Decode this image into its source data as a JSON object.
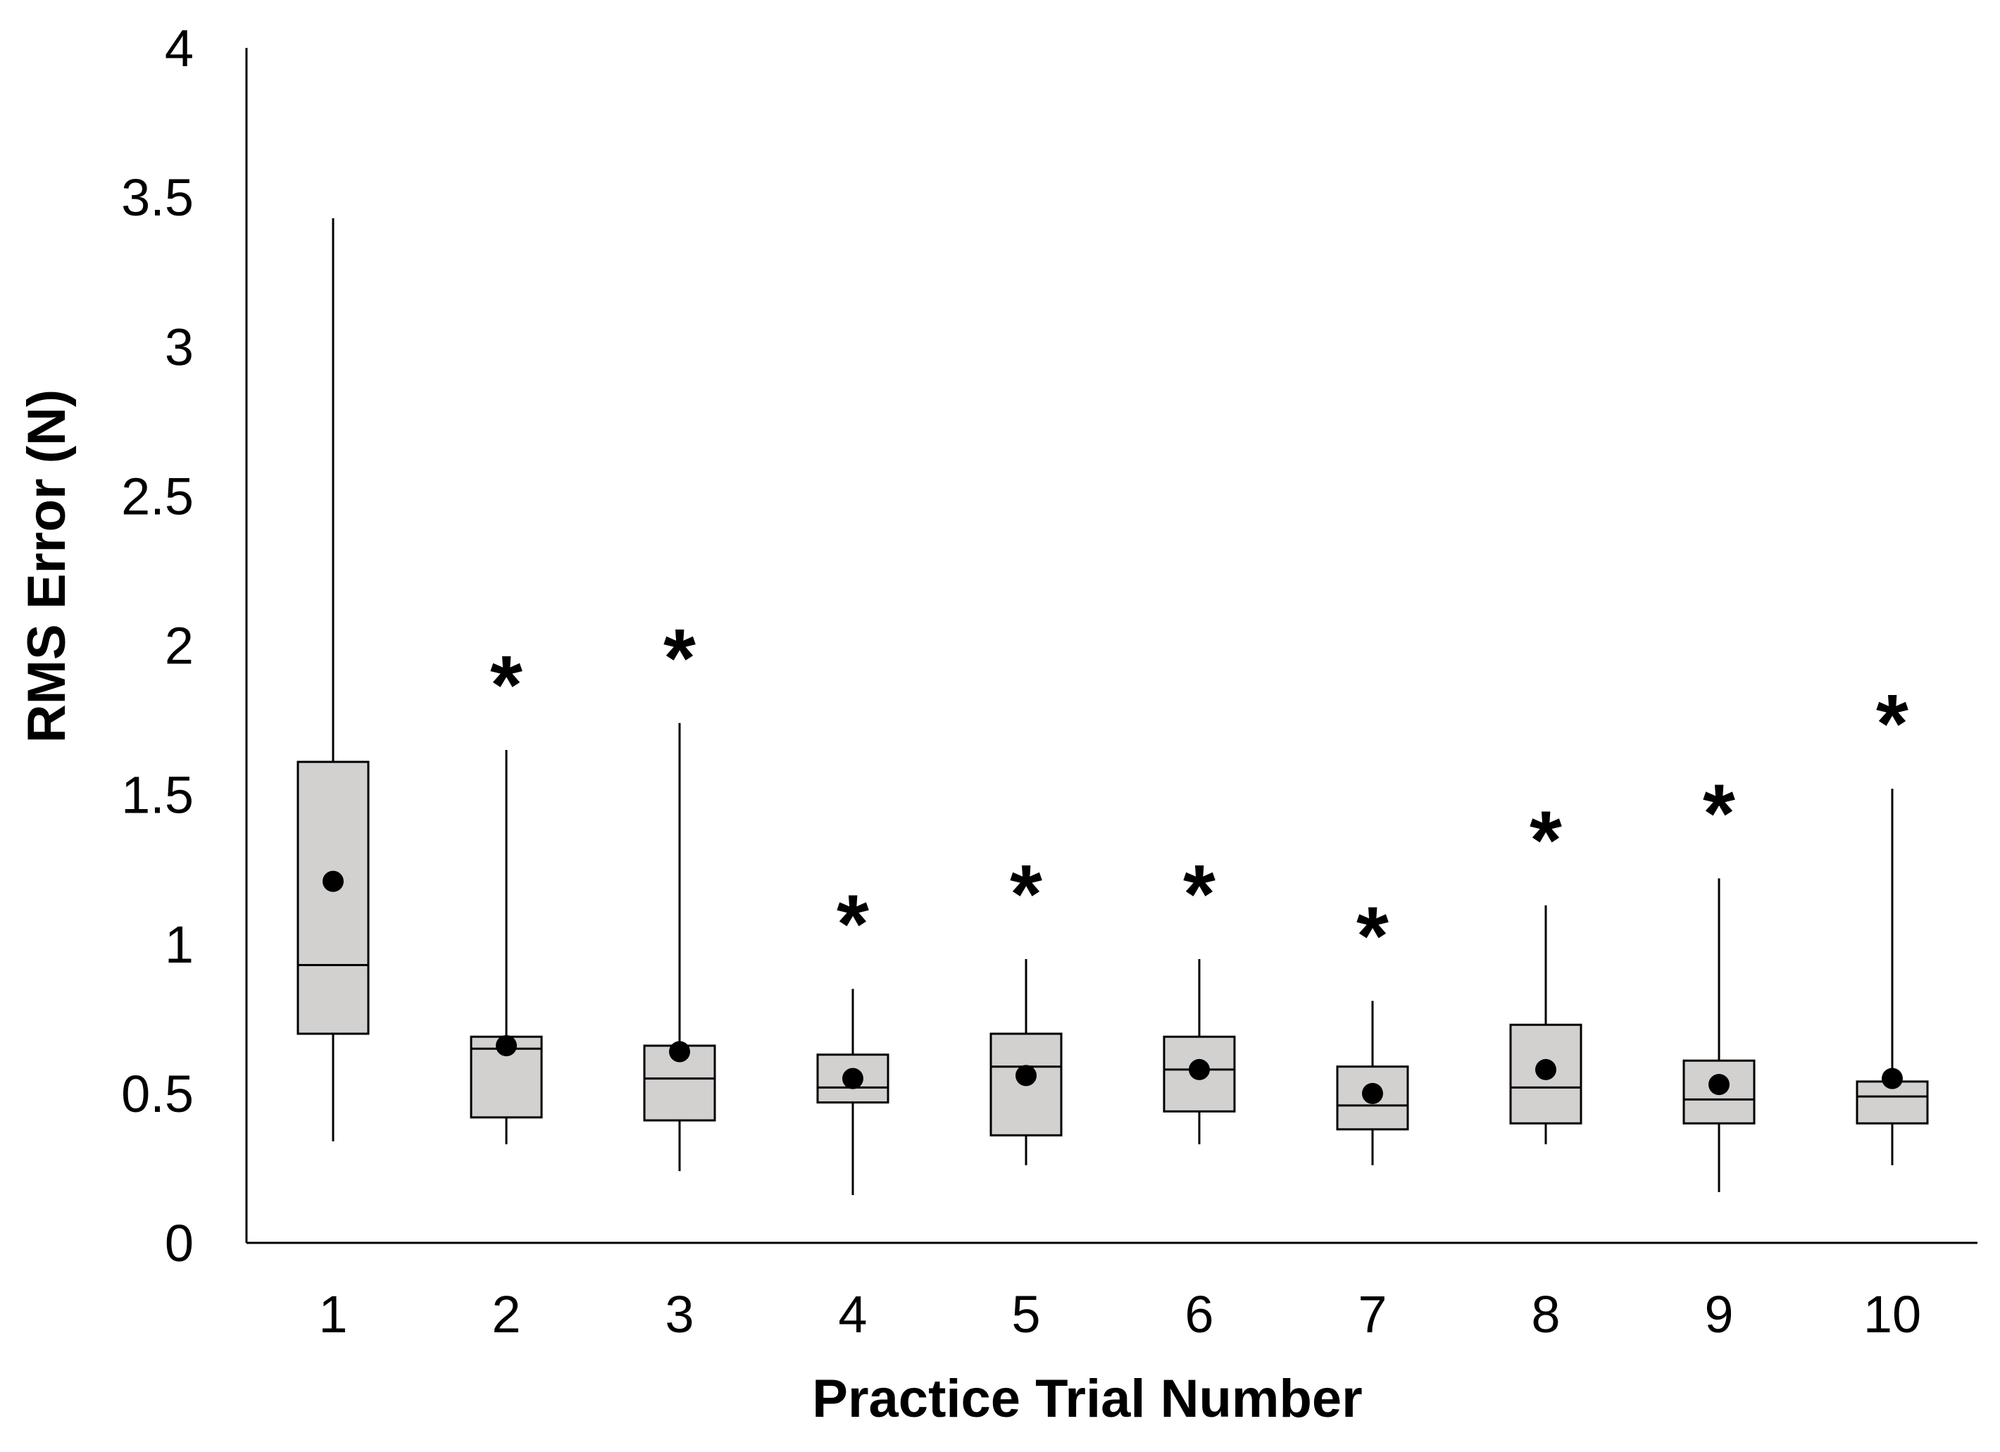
{
  "chart_data": {
    "type": "box",
    "xlabel": "Practice Trial Number",
    "ylabel": "RMS Error (N)",
    "ylim": [
      0,
      4
    ],
    "yticks": [
      "0",
      "0.5",
      "1",
      "1.5",
      "2",
      "2.5",
      "3",
      "3.5",
      "4"
    ],
    "categories": [
      "1",
      "2",
      "3",
      "4",
      "5",
      "6",
      "7",
      "8",
      "9",
      "10"
    ],
    "grid": false,
    "legend": "none",
    "box_fill": "#d3d0d0",
    "series": [
      {
        "category": "1",
        "min": 0.34,
        "q1": 0.7,
        "median": 0.93,
        "q3": 1.61,
        "max": 3.43,
        "mean": 1.21,
        "significance": ""
      },
      {
        "category": "2",
        "min": 0.33,
        "q1": 0.42,
        "median": 0.65,
        "q3": 0.69,
        "max": 1.65,
        "mean": 0.66,
        "significance": "*"
      },
      {
        "category": "3",
        "min": 0.24,
        "q1": 0.41,
        "median": 0.55,
        "q3": 0.66,
        "max": 1.74,
        "mean": 0.64,
        "significance": "*"
      },
      {
        "category": "4",
        "min": 0.16,
        "q1": 0.47,
        "median": 0.52,
        "q3": 0.63,
        "max": 0.85,
        "mean": 0.55,
        "significance": "*"
      },
      {
        "category": "5",
        "min": 0.26,
        "q1": 0.36,
        "median": 0.59,
        "q3": 0.7,
        "max": 0.95,
        "mean": 0.56,
        "significance": "*"
      },
      {
        "category": "6",
        "min": 0.33,
        "q1": 0.44,
        "median": 0.58,
        "q3": 0.69,
        "max": 0.95,
        "mean": 0.58,
        "significance": "*"
      },
      {
        "category": "7",
        "min": 0.26,
        "q1": 0.38,
        "median": 0.46,
        "q3": 0.59,
        "max": 0.81,
        "mean": 0.5,
        "significance": "*"
      },
      {
        "category": "8",
        "min": 0.33,
        "q1": 0.4,
        "median": 0.52,
        "q3": 0.73,
        "max": 1.13,
        "mean": 0.58,
        "significance": "*"
      },
      {
        "category": "9",
        "min": 0.17,
        "q1": 0.4,
        "median": 0.48,
        "q3": 0.61,
        "max": 1.22,
        "mean": 0.53,
        "significance": "*"
      },
      {
        "category": "10",
        "min": 0.26,
        "q1": 0.4,
        "median": 0.49,
        "q3": 0.54,
        "max": 1.52,
        "mean": 0.55,
        "significance": "*"
      }
    ]
  }
}
